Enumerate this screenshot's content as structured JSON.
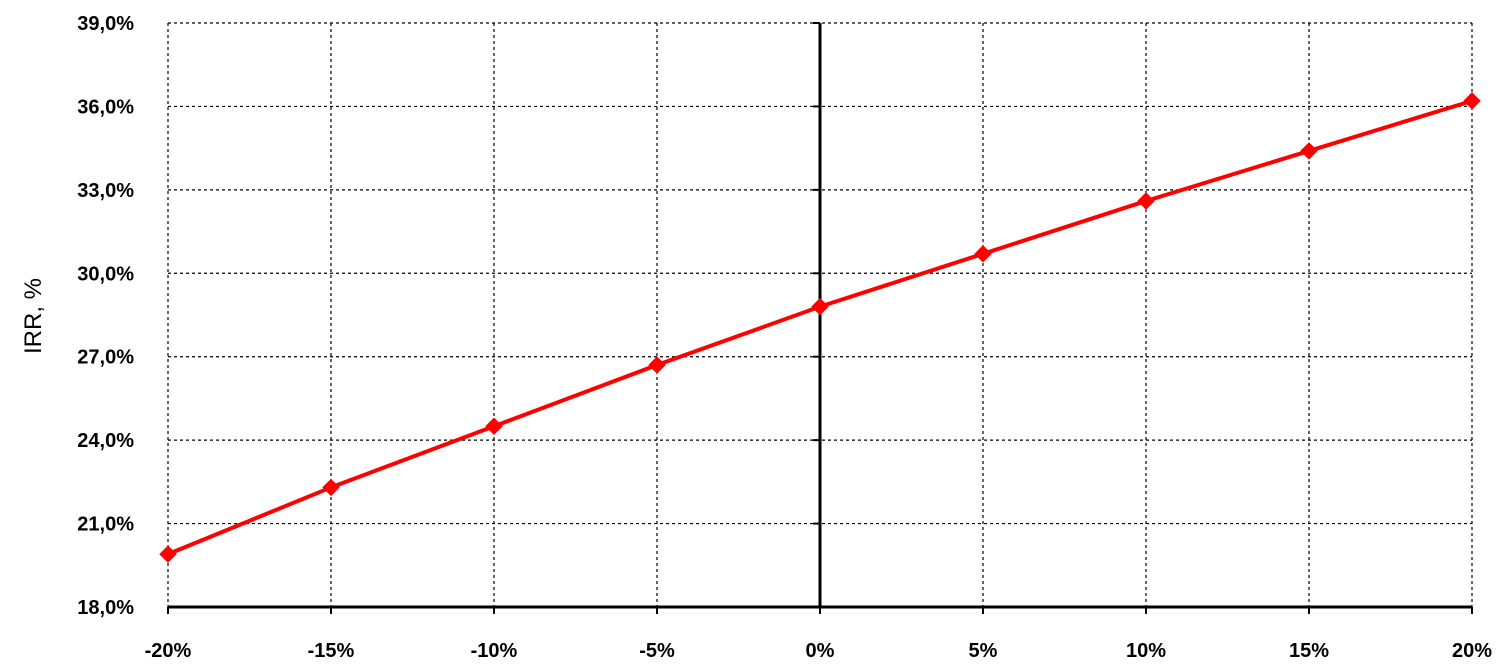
{
  "chart_data": {
    "type": "line",
    "title": "",
    "xlabel": "",
    "ylabel": "IRR, %",
    "categories": [
      "-20%",
      "-15%",
      "-10%",
      "-5%",
      "0%",
      "5%",
      "10%",
      "15%",
      "20%"
    ],
    "x": [
      -20,
      -15,
      -10,
      -5,
      0,
      5,
      10,
      15,
      20
    ],
    "series": [
      {
        "values": [
          19.9,
          22.3,
          24.5,
          26.7,
          28.8,
          30.7,
          32.6,
          34.4,
          36.2
        ]
      }
    ],
    "ylim": [
      18,
      39
    ],
    "xlim": [
      -20,
      20
    ],
    "yticks": [
      18,
      21,
      24,
      27,
      30,
      33,
      36,
      39
    ],
    "ytick_labels": [
      "18,0%",
      "21,0%",
      "24,0%",
      "27,0%",
      "30,0%",
      "33,0%",
      "36,0%",
      "39,0%"
    ],
    "grid": true,
    "marker": "diamond",
    "colors": {
      "series": "#ff0000",
      "grid": "#000000",
      "axis": "#000000"
    }
  }
}
